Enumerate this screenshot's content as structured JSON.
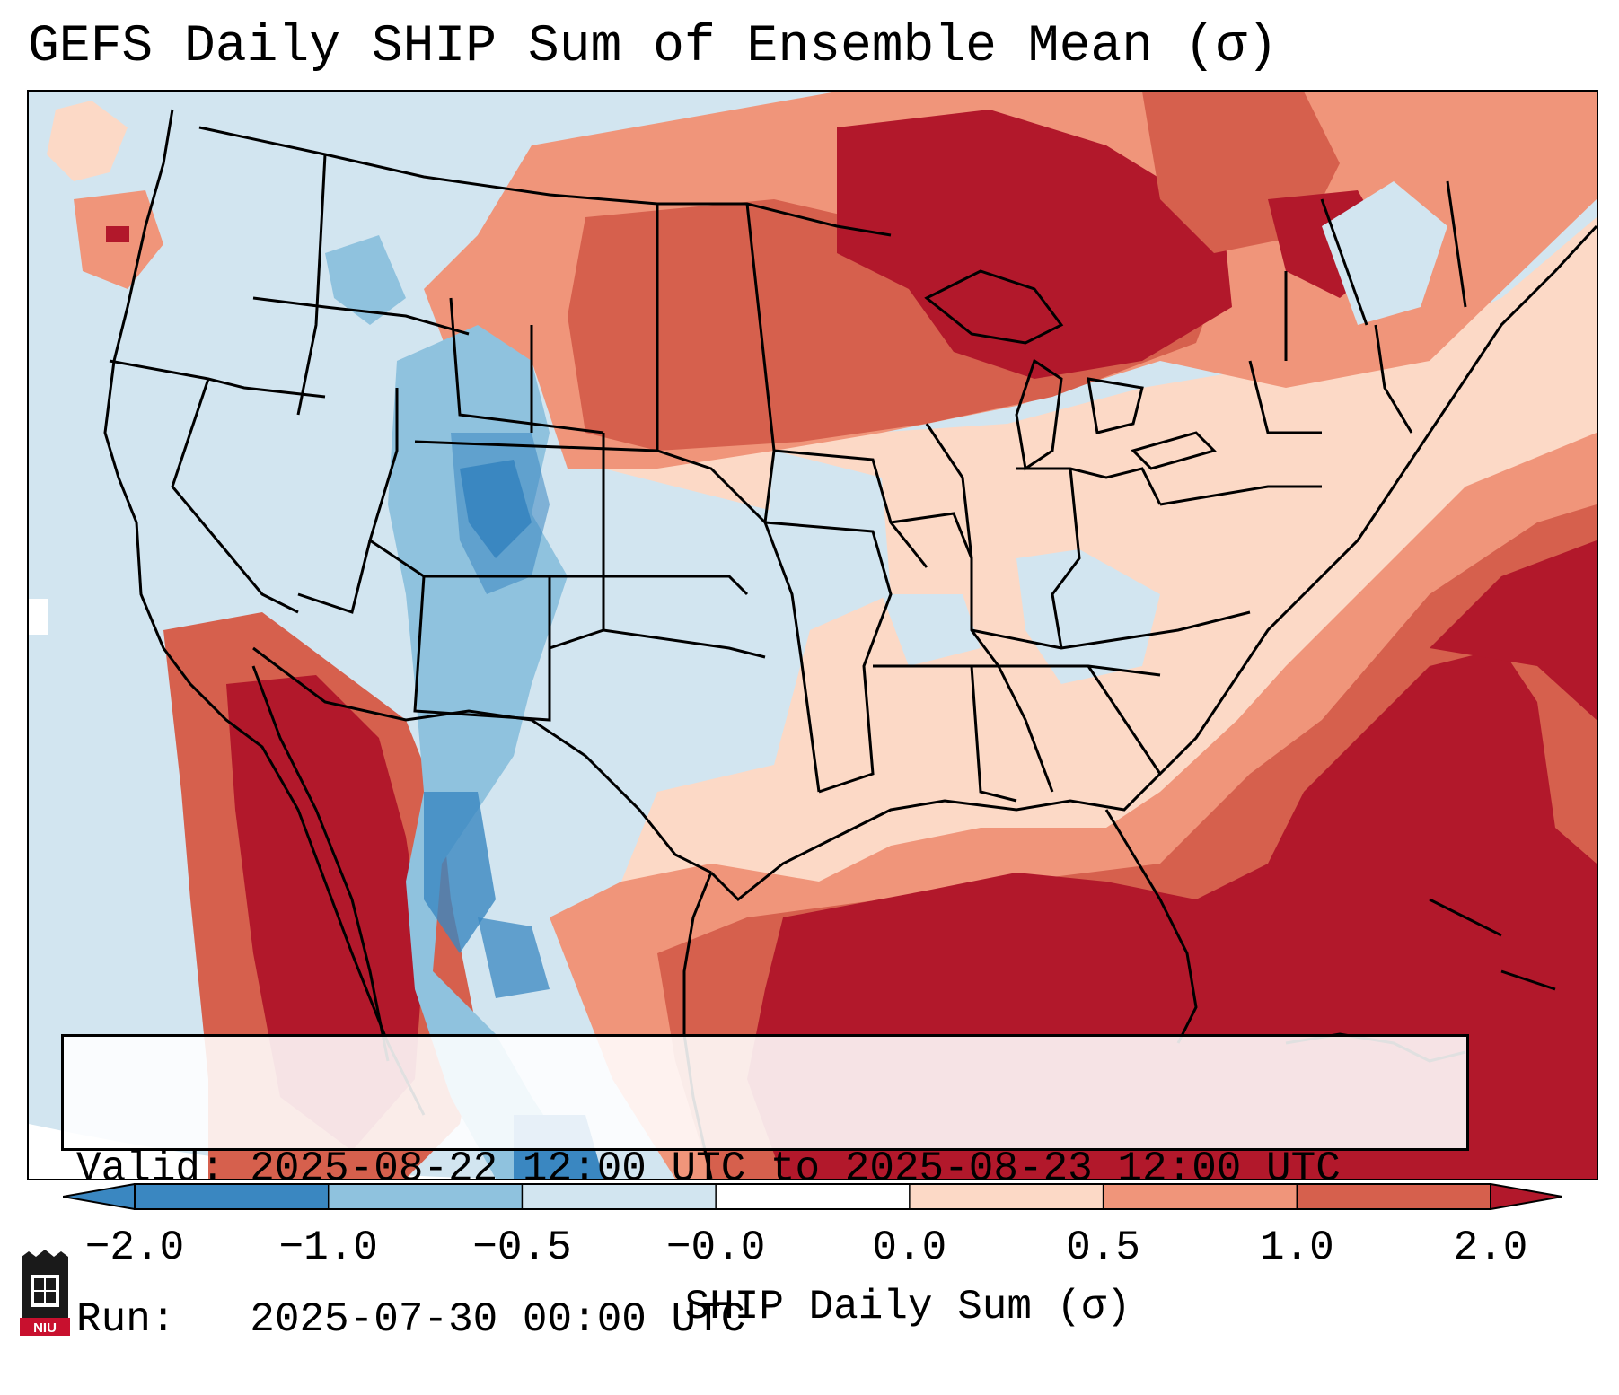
{
  "title": "GEFS Daily SHIP Sum of Ensemble Mean (σ)",
  "info": {
    "valid": "Valid: 2025-08-22 12:00 UTC to 2025-08-23 12:00 UTC",
    "run": "Run:   2025-07-30 00:00 UTC"
  },
  "colorbar": {
    "label": "SHIP Daily Sum (σ)",
    "ticks": [
      "−2.0",
      "−1.0",
      "−0.5",
      "−0.0",
      "0.0",
      "0.5",
      "1.0",
      "2.0"
    ],
    "colors": [
      "#3a87c1",
      "#8fc2de",
      "#d2e5f0",
      "#ffffff",
      "#fcd9c6",
      "#f0957a",
      "#d6604d",
      "#b2182b"
    ],
    "extend": "both"
  },
  "logo": {
    "text": "NIU"
  },
  "colors": {
    "blue_strong": "#3a87c1",
    "blue_mid": "#8fc2de",
    "blue_light": "#d2e5f0",
    "red_light": "#fcd9c6",
    "red_mid": "#f0957a",
    "red_strong": "#d6604d",
    "red_dark": "#b2182b"
  }
}
